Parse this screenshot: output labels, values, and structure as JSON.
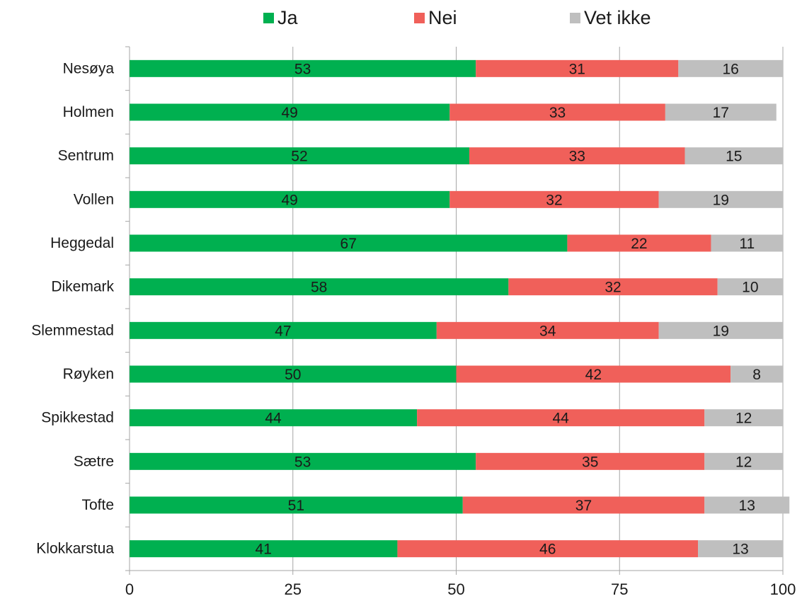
{
  "chart_data": {
    "type": "stacked-bar-horizontal",
    "categories": [
      "Nesøya",
      "Holmen",
      "Sentrum",
      "Vollen",
      "Heggedal",
      "Dikemark",
      "Slemmestad",
      "Røyken",
      "Spikkestad",
      "Sætre",
      "Tofte",
      "Klokkarstua"
    ],
    "series": [
      {
        "name": "Ja",
        "color": "#00b050",
        "values": [
          53,
          49,
          52,
          49,
          67,
          58,
          47,
          50,
          44,
          53,
          51,
          41
        ]
      },
      {
        "name": "Nei",
        "color": "#f0605a",
        "values": [
          31,
          33,
          33,
          32,
          22,
          32,
          34,
          42,
          44,
          35,
          37,
          46
        ]
      },
      {
        "name": "Vet ikke",
        "color": "#bfbfbf",
        "values": [
          16,
          17,
          15,
          19,
          11,
          10,
          19,
          8,
          12,
          12,
          13,
          13
        ]
      }
    ],
    "xlim": [
      0,
      100
    ],
    "xticks": [
      0,
      25,
      50,
      75,
      100
    ],
    "grid": true,
    "legend": "top"
  }
}
